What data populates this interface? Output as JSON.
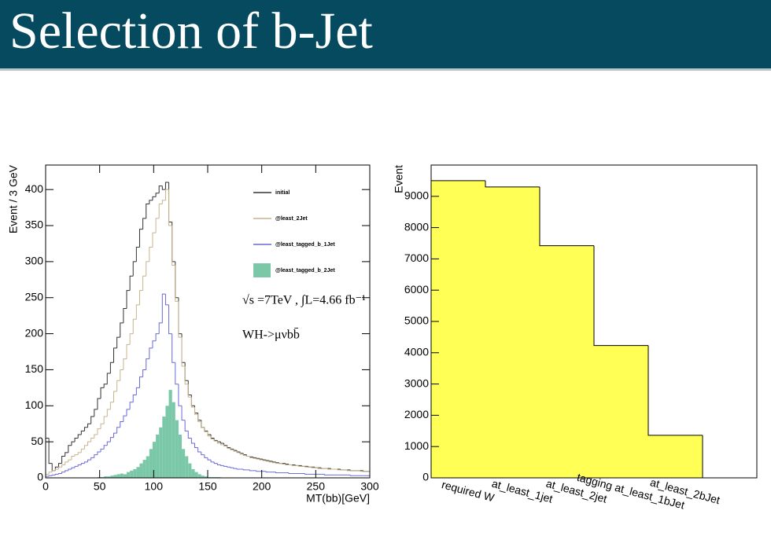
{
  "title": "Selection of b-Jet",
  "chart_data": [
    {
      "type": "histogram",
      "x_label": "MT(bb)[GeV]",
      "y_label": "Event / 3 GeV",
      "annotations": [
        "√s =7TeV , ∫L=4.66 fb⁻¹",
        "WH->μνbb̄"
      ],
      "xlim": [
        0,
        300
      ],
      "ylim": [
        0,
        434
      ],
      "xticks": [
        0,
        50,
        100,
        150,
        200,
        250,
        300
      ],
      "yticks": [
        0,
        50,
        100,
        150,
        200,
        250,
        300,
        350,
        400
      ],
      "legend": "top-right",
      "bins": [
        0,
        3,
        6,
        9,
        12,
        15,
        18,
        21,
        24,
        27,
        30,
        33,
        36,
        39,
        42,
        45,
        48,
        51,
        54,
        57,
        60,
        63,
        66,
        69,
        72,
        75,
        78,
        81,
        84,
        87,
        90,
        93,
        96,
        99,
        102,
        105,
        108,
        111,
        114,
        117,
        120,
        123,
        126,
        129,
        132,
        135,
        138,
        141,
        144,
        147,
        150,
        153,
        156,
        159,
        162,
        165,
        168,
        171,
        174,
        177,
        180,
        183,
        186,
        189,
        192,
        195,
        198,
        201,
        204,
        207,
        210,
        213,
        216,
        219,
        222,
        225,
        228,
        231,
        234,
        237,
        240,
        243,
        246,
        249,
        252,
        255,
        258,
        261,
        264,
        267,
        270,
        273,
        276,
        279,
        282,
        285,
        288,
        291,
        294,
        297,
        300
      ],
      "series": [
        {
          "name": "initial",
          "color": "#333333",
          "filled": false,
          "values": [
            55,
            20,
            10,
            15,
            20,
            30,
            35,
            45,
            50,
            55,
            60,
            65,
            70,
            75,
            85,
            95,
            110,
            125,
            130,
            145,
            160,
            180,
            195,
            215,
            235,
            260,
            280,
            300,
            320,
            345,
            360,
            380,
            385,
            390,
            395,
            405,
            400,
            410,
            355,
            300,
            250,
            200,
            160,
            135,
            115,
            100,
            90,
            80,
            70,
            65,
            60,
            55,
            52,
            50,
            48,
            45,
            42,
            40,
            38,
            36,
            34,
            32,
            30,
            29,
            28,
            27,
            26,
            25,
            24,
            23,
            22,
            21,
            20,
            20,
            19,
            18,
            18,
            17,
            17,
            16,
            16,
            15,
            15,
            14,
            14,
            13,
            13,
            13,
            12,
            12,
            12,
            11,
            11,
            11,
            10,
            10,
            10,
            10,
            9,
            9
          ]
        },
        {
          "name": "@least_2Jet",
          "color": "#c8b48c",
          "filled": false,
          "values": [
            5,
            8,
            10,
            12,
            15,
            18,
            22,
            25,
            30,
            32,
            35,
            40,
            45,
            50,
            55,
            60,
            68,
            75,
            85,
            95,
            105,
            120,
            135,
            150,
            165,
            185,
            200,
            220,
            240,
            260,
            280,
            300,
            320,
            340,
            360,
            380,
            385,
            400,
            350,
            295,
            245,
            195,
            155,
            130,
            112,
            98,
            88,
            78,
            70,
            64,
            58,
            54,
            51,
            48,
            46,
            44,
            41,
            39,
            37,
            35,
            33,
            31,
            30,
            28,
            27,
            26,
            25,
            24,
            23,
            22,
            21,
            20,
            20,
            19,
            18,
            18,
            17,
            17,
            16,
            16,
            15,
            15,
            14,
            14,
            13,
            13,
            13,
            12,
            12,
            12,
            11,
            11,
            11,
            10,
            10,
            10,
            10,
            9,
            9,
            9
          ]
        },
        {
          "name": "@least_tagged_b_1Jet",
          "color": "#6a6ad8",
          "filled": false,
          "values": [
            2,
            3,
            4,
            5,
            6,
            8,
            10,
            12,
            14,
            16,
            18,
            20,
            22,
            25,
            28,
            32,
            36,
            40,
            45,
            50,
            56,
            62,
            70,
            78,
            86,
            95,
            105,
            115,
            125,
            140,
            150,
            165,
            180,
            190,
            200,
            215,
            255,
            240,
            200,
            160,
            130,
            100,
            80,
            65,
            55,
            48,
            42,
            36,
            32,
            28,
            25,
            22,
            20,
            18,
            17,
            16,
            15,
            14,
            13,
            12,
            12,
            11,
            11,
            10,
            10,
            9,
            9,
            9,
            8,
            8,
            8,
            7,
            7,
            7,
            7,
            6,
            6,
            6,
            6,
            6,
            5,
            5,
            5,
            5,
            5,
            5,
            4,
            4,
            4,
            4,
            4,
            4,
            4,
            4,
            3,
            3,
            3,
            3,
            3,
            3
          ]
        },
        {
          "name": "@least_tagged_b_2Jet",
          "color": "#7ac8a8",
          "filled": true,
          "values": [
            0,
            0,
            0,
            0,
            0,
            0,
            0,
            0,
            0,
            0,
            0,
            0,
            0,
            0,
            0,
            0,
            1,
            1,
            2,
            2,
            3,
            4,
            5,
            6,
            5,
            8,
            10,
            12,
            15,
            20,
            25,
            30,
            40,
            50,
            60,
            70,
            85,
            100,
            122,
            105,
            80,
            60,
            40,
            30,
            20,
            12,
            8,
            5,
            3,
            2,
            1,
            1,
            1,
            1,
            0,
            0,
            0,
            0,
            0,
            0,
            0,
            0,
            0,
            0,
            0,
            0,
            0,
            0,
            0,
            0,
            0,
            0,
            0,
            0,
            0,
            0,
            0,
            0,
            0,
            0,
            0,
            0,
            0,
            0,
            0,
            0,
            0,
            0,
            0,
            0,
            0,
            0,
            0,
            0,
            0,
            0,
            0,
            0,
            0,
            0
          ]
        }
      ]
    },
    {
      "type": "bar",
      "y_label": "Event",
      "categories": [
        "required W",
        "at_least_1jet",
        "at_least_2jet",
        "tagging at_least_1bJet",
        "at_least_2bJet",
        null
      ],
      "values": [
        9500,
        9300,
        7420,
        4230,
        1360,
        0
      ],
      "color": "#ffff55",
      "ylim": [
        0,
        10000
      ],
      "yticks": [
        0,
        1000,
        2000,
        3000,
        4000,
        5000,
        6000,
        7000,
        8000,
        9000
      ]
    }
  ]
}
